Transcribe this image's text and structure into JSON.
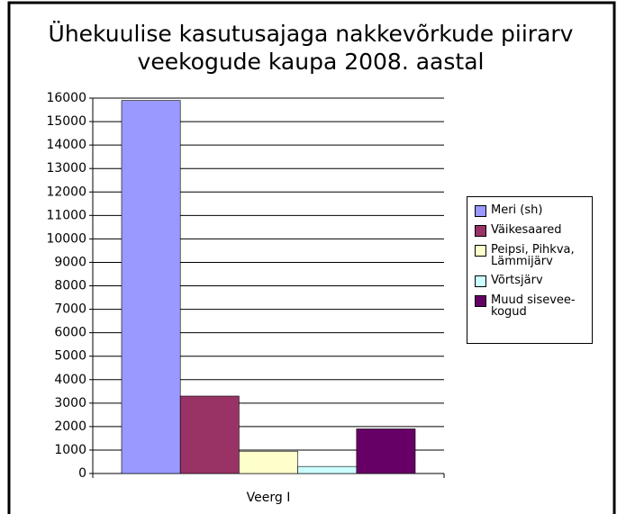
{
  "chart_data": {
    "type": "bar",
    "title": "Ühekuulise kasutusajaga nakkevõrkude piirarv veekogude kaupa 2008. aastal",
    "categories": [
      "Veerg I"
    ],
    "series": [
      {
        "name": "Meri (sh)",
        "color": "#9999ff",
        "values": [
          15900
        ]
      },
      {
        "name": "Väikesaared",
        "color": "#993366",
        "values": [
          3300
        ]
      },
      {
        "name": "Peipsi, Pihkva, Lämmijärv",
        "color": "#ffffcc",
        "values": [
          950
        ]
      },
      {
        "name": "Võrtsjärv",
        "color": "#ccffff",
        "values": [
          300
        ]
      },
      {
        "name": "Muud sisevee-kogud",
        "color": "#660066",
        "values": [
          1900
        ]
      }
    ],
    "ylim": [
      0,
      16000
    ],
    "yticks": [
      0,
      1000,
      2000,
      3000,
      4000,
      5000,
      6000,
      7000,
      8000,
      9000,
      10000,
      11000,
      12000,
      13000,
      14000,
      15000,
      16000
    ],
    "grid": true,
    "legend": "right"
  }
}
